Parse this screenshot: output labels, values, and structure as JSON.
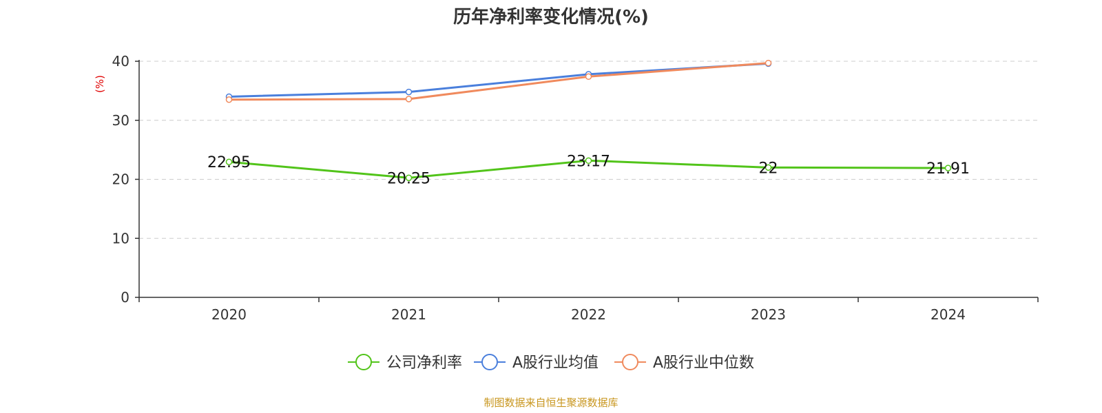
{
  "chart_data": {
    "type": "line",
    "title": "历年净利率变化情况(%)",
    "ylabel": "(%)",
    "xlabel": "",
    "categories": [
      "2020",
      "2021",
      "2022",
      "2023",
      "2024"
    ],
    "ylim": [
      0,
      40
    ],
    "yticks": [
      0,
      10,
      20,
      30,
      40
    ],
    "grid": true,
    "legend_position": "bottom",
    "series": [
      {
        "name": "公司净利率",
        "color": "#52c41a",
        "values": [
          22.95,
          20.25,
          23.17,
          22,
          21.91
        ],
        "labels": [
          "22.95",
          "20.25",
          "23.17",
          "22",
          "21.91"
        ]
      },
      {
        "name": "A股行业均值",
        "color": "#4a7fdc",
        "values": [
          34.0,
          34.8,
          37.8,
          39.6,
          null
        ]
      },
      {
        "name": "A股行业中位数",
        "color": "#f08a5d",
        "values": [
          33.5,
          33.6,
          37.4,
          39.7,
          null
        ]
      }
    ]
  },
  "source_note": "制图数据来自恒生聚源数据库"
}
